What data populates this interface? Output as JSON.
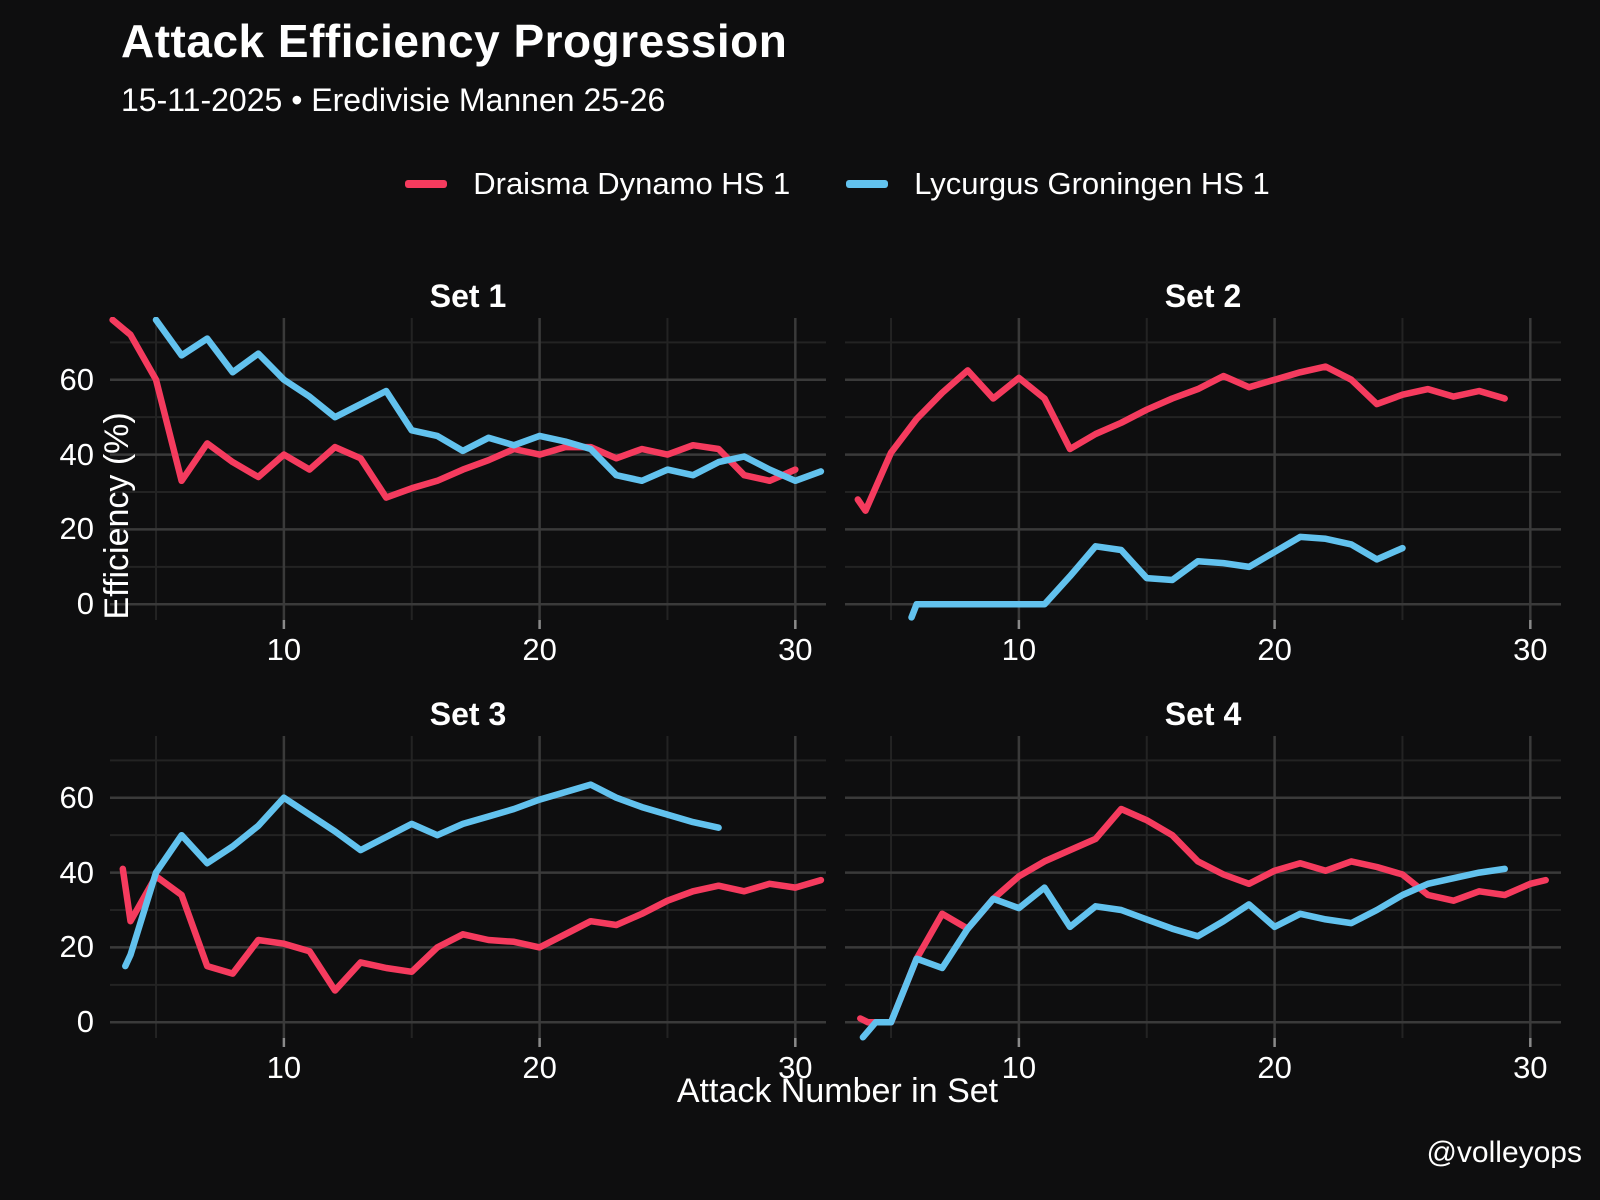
{
  "title": "Attack Efficiency Progression",
  "subtitle": "15-11-2025 • Eredivisie Mannen 25-26",
  "footer": "@volleyops",
  "legend": {
    "items": [
      {
        "label": "Draisma Dynamo HS 1",
        "color": "#f53b5e"
      },
      {
        "label": "Lycurgus Groningen HS 1",
        "color": "#62c2ee"
      }
    ]
  },
  "chart_data": {
    "type": "line",
    "title": "Attack Efficiency Progression",
    "xlabel": "Attack Number in Set",
    "ylabel": "Efficiency (%)",
    "xlim": [
      3.2,
      31.2
    ],
    "ylim": [
      -4.2,
      76.5
    ],
    "x_major_ticks": [
      10,
      20,
      30
    ],
    "x_minor_gridlines": [
      5,
      15,
      25
    ],
    "y_major_ticks": [
      0,
      20,
      40,
      60
    ],
    "y_minor_gridlines": [
      10,
      30,
      50,
      70
    ],
    "grid": "on",
    "legend_position": "top-center",
    "colors": {
      "major_grid": "#3a3a3a",
      "minor_grid": "#232323",
      "tick_mark": "#8a8a8a",
      "background": "#0e0e0f"
    },
    "series_names": [
      "Draisma Dynamo HS 1",
      "Lycurgus Groningen HS 1"
    ],
    "panels": [
      {
        "title": "Set 1",
        "dynamo": [
          [
            3.3,
            76
          ],
          [
            4,
            72
          ],
          [
            5,
            60
          ],
          [
            6,
            33
          ],
          [
            7,
            43
          ],
          [
            8,
            38
          ],
          [
            9,
            34
          ],
          [
            10,
            40
          ],
          [
            11,
            36
          ],
          [
            12,
            42
          ],
          [
            13,
            39
          ],
          [
            14,
            28.5
          ],
          [
            15,
            31
          ],
          [
            16,
            33
          ],
          [
            17,
            36
          ],
          [
            18,
            38.5
          ],
          [
            19,
            41.5
          ],
          [
            20,
            40
          ],
          [
            21,
            42
          ],
          [
            22,
            42
          ],
          [
            23,
            39
          ],
          [
            24,
            41.5
          ],
          [
            25,
            40
          ],
          [
            26,
            42.5
          ],
          [
            27,
            41.5
          ],
          [
            28,
            34.5
          ],
          [
            29,
            33
          ],
          [
            30,
            36
          ]
        ],
        "lycurgus": [
          [
            5,
            76
          ],
          [
            6,
            66.5
          ],
          [
            7,
            71
          ],
          [
            8,
            62
          ],
          [
            9,
            67
          ],
          [
            10,
            60
          ],
          [
            11,
            55.5
          ],
          [
            12,
            50
          ],
          [
            13,
            53.5
          ],
          [
            14,
            57
          ],
          [
            15,
            46.5
          ],
          [
            16,
            45
          ],
          [
            17,
            41
          ],
          [
            18,
            44.5
          ],
          [
            19,
            42.5
          ],
          [
            20,
            45
          ],
          [
            21,
            43.5
          ],
          [
            22,
            41.5
          ],
          [
            23,
            34.5
          ],
          [
            24,
            33
          ],
          [
            25,
            36
          ],
          [
            26,
            34.5
          ],
          [
            27,
            38
          ],
          [
            28,
            39.5
          ],
          [
            29,
            36
          ],
          [
            30,
            33
          ],
          [
            31,
            35.5
          ]
        ]
      },
      {
        "title": "Set 2",
        "dynamo": [
          [
            3.7,
            28
          ],
          [
            4,
            25
          ],
          [
            5,
            40.5
          ],
          [
            6,
            49.5
          ],
          [
            7,
            56.5
          ],
          [
            8,
            62.5
          ],
          [
            9,
            55
          ],
          [
            10,
            60.5
          ],
          [
            11,
            55
          ],
          [
            12,
            41.5
          ],
          [
            13,
            45.5
          ],
          [
            14,
            48.5
          ],
          [
            15,
            52
          ],
          [
            16,
            55
          ],
          [
            17,
            57.5
          ],
          [
            18,
            61
          ],
          [
            19,
            58
          ],
          [
            20,
            60
          ],
          [
            21,
            62
          ],
          [
            22,
            63.5
          ],
          [
            23,
            60
          ],
          [
            24,
            53.5
          ],
          [
            25,
            56
          ],
          [
            26,
            57.5
          ],
          [
            27,
            55.5
          ],
          [
            28,
            57
          ],
          [
            29,
            55
          ]
        ],
        "lycurgus": [
          [
            5.8,
            -3.5
          ],
          [
            6,
            0
          ],
          [
            7,
            0
          ],
          [
            8,
            0
          ],
          [
            9,
            0
          ],
          [
            10,
            0
          ],
          [
            11,
            0
          ],
          [
            12,
            7.5
          ],
          [
            13,
            15.5
          ],
          [
            14,
            14.5
          ],
          [
            15,
            7
          ],
          [
            16,
            6.5
          ],
          [
            17,
            11.5
          ],
          [
            18,
            11
          ],
          [
            19,
            10
          ],
          [
            20,
            14
          ],
          [
            21,
            18
          ],
          [
            22,
            17.5
          ],
          [
            23,
            16
          ],
          [
            24,
            12
          ],
          [
            25,
            15
          ]
        ]
      },
      {
        "title": "Set 3",
        "dynamo": [
          [
            3.7,
            41
          ],
          [
            4,
            27
          ],
          [
            5,
            39
          ],
          [
            6,
            34
          ],
          [
            7,
            15
          ],
          [
            8,
            13
          ],
          [
            9,
            22
          ],
          [
            10,
            21
          ],
          [
            11,
            19
          ],
          [
            12,
            8.5
          ],
          [
            13,
            16
          ],
          [
            14,
            14.5
          ],
          [
            15,
            13.5
          ],
          [
            16,
            20
          ],
          [
            17,
            23.5
          ],
          [
            18,
            22
          ],
          [
            19,
            21.5
          ],
          [
            20,
            20
          ],
          [
            21,
            23.5
          ],
          [
            22,
            27
          ],
          [
            23,
            26
          ],
          [
            24,
            29
          ],
          [
            25,
            32.5
          ],
          [
            26,
            35
          ],
          [
            27,
            36.5
          ],
          [
            28,
            35
          ],
          [
            29,
            37
          ],
          [
            30,
            36
          ],
          [
            31,
            38
          ]
        ],
        "lycurgus": [
          [
            3.8,
            15
          ],
          [
            4,
            18
          ],
          [
            5,
            40
          ],
          [
            6,
            50
          ],
          [
            7,
            42.5
          ],
          [
            8,
            47
          ],
          [
            9,
            52.5
          ],
          [
            10,
            60
          ],
          [
            11,
            55.5
          ],
          [
            12,
            51
          ],
          [
            13,
            46
          ],
          [
            14,
            49.5
          ],
          [
            15,
            53
          ],
          [
            16,
            50
          ],
          [
            17,
            53
          ],
          [
            18,
            55
          ],
          [
            19,
            57
          ],
          [
            20,
            59.5
          ],
          [
            21,
            61.5
          ],
          [
            22,
            63.5
          ],
          [
            23,
            60
          ],
          [
            24,
            57.5
          ],
          [
            25,
            55.5
          ],
          [
            26,
            53.5
          ],
          [
            27,
            52
          ]
        ]
      },
      {
        "title": "Set 4",
        "dynamo": [
          [
            3.8,
            1
          ],
          [
            4.1,
            0
          ],
          [
            5,
            0
          ],
          [
            6,
            17
          ],
          [
            7,
            29
          ],
          [
            8,
            25
          ],
          [
            9,
            33
          ],
          [
            10,
            39
          ],
          [
            11,
            43
          ],
          [
            12,
            46
          ],
          [
            13,
            49
          ],
          [
            14,
            57
          ],
          [
            15,
            54
          ],
          [
            16,
            50
          ],
          [
            17,
            43
          ],
          [
            18,
            39.5
          ],
          [
            19,
            37
          ],
          [
            20,
            40.5
          ],
          [
            21,
            42.5
          ],
          [
            22,
            40.5
          ],
          [
            23,
            43
          ],
          [
            24,
            41.5
          ],
          [
            25,
            39.5
          ],
          [
            26,
            34
          ],
          [
            27,
            32.5
          ],
          [
            28,
            35
          ],
          [
            29,
            34
          ],
          [
            30,
            37
          ],
          [
            30.6,
            38
          ]
        ],
        "lycurgus": [
          [
            3.9,
            -4
          ],
          [
            4.4,
            0
          ],
          [
            5,
            0
          ],
          [
            6,
            17
          ],
          [
            7,
            14.5
          ],
          [
            8,
            25
          ],
          [
            9,
            33
          ],
          [
            10,
            30.5
          ],
          [
            11,
            36
          ],
          [
            12,
            25.5
          ],
          [
            13,
            31
          ],
          [
            14,
            30
          ],
          [
            15,
            27.5
          ],
          [
            16,
            25
          ],
          [
            17,
            23
          ],
          [
            18,
            27
          ],
          [
            19,
            31.5
          ],
          [
            20,
            25.5
          ],
          [
            21,
            29
          ],
          [
            22,
            27.5
          ],
          [
            23,
            26.5
          ],
          [
            24,
            30
          ],
          [
            25,
            34
          ],
          [
            26,
            37
          ],
          [
            27,
            38.5
          ],
          [
            28,
            40
          ],
          [
            29,
            41
          ]
        ]
      }
    ]
  }
}
